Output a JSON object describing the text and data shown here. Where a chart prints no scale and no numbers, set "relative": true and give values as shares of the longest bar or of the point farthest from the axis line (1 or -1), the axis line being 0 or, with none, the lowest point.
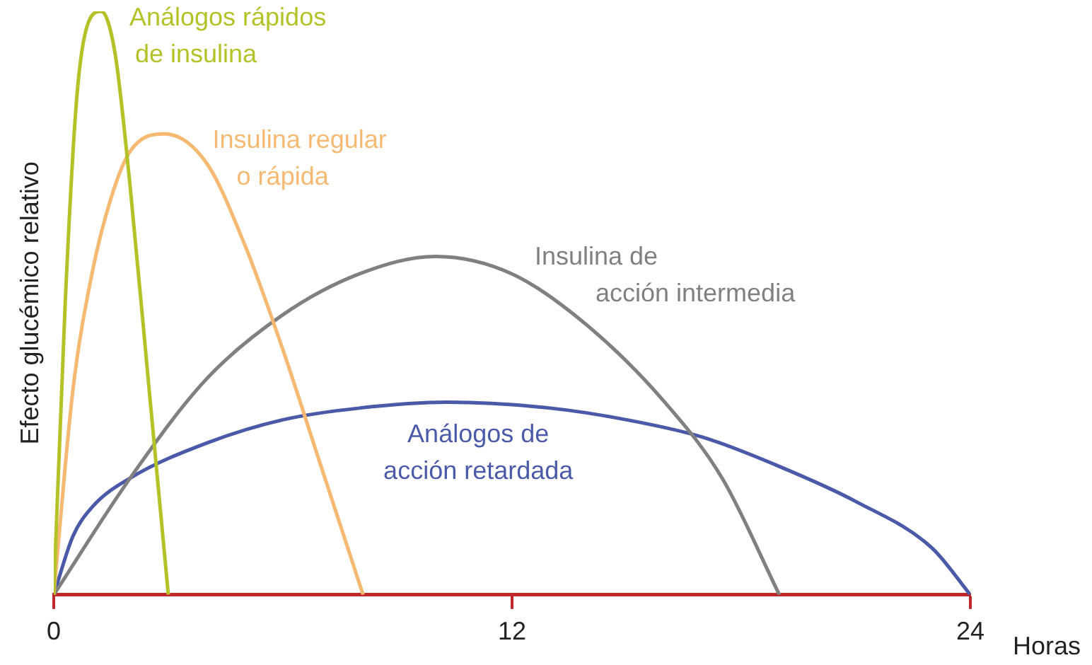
{
  "chart_data": {
    "type": "line",
    "relative": true,
    "ylabel": "Efecto glucémico relativo",
    "xlabel": "Horas",
    "xlim": [
      0,
      24
    ],
    "xticks": [
      0,
      12,
      24
    ],
    "grid": false,
    "legend": false,
    "marker": "none",
    "line_style": "solid",
    "series": [
      {
        "name": "Análogos rápidos de insulina",
        "color": "#b5c227",
        "x": [
          0,
          0.3,
          0.6,
          0.9,
          1.24,
          1.6,
          2.0,
          2.5,
          3.0
        ],
        "values": [
          0,
          0.5,
          0.85,
          0.98,
          1,
          0.93,
          0.7,
          0.35,
          0
        ]
      },
      {
        "name": "Insulina regular o rápida",
        "color": "#f5b971",
        "x": [
          0,
          0.5,
          1,
          1.5,
          2,
          2.9,
          4,
          5,
          6,
          7,
          8.1
        ],
        "values": [
          0,
          0.35,
          0.55,
          0.68,
          0.76,
          0.79,
          0.74,
          0.6,
          0.42,
          0.22,
          0
        ]
      },
      {
        "name": "Insulina de acción intermedia",
        "color": "#808080",
        "x": [
          0,
          2,
          4,
          6,
          8,
          10,
          12,
          14,
          16,
          17.5,
          19
        ],
        "values": [
          0,
          0.2,
          0.37,
          0.48,
          0.55,
          0.58,
          0.55,
          0.46,
          0.33,
          0.2,
          0
        ]
      },
      {
        "name": "Análogos de acción retardada",
        "color": "#4a5aa8",
        "x": [
          0,
          0.5,
          1,
          2,
          4,
          6,
          8,
          10.3,
          13,
          15,
          17,
          19,
          21,
          23,
          24
        ],
        "values": [
          0,
          0.1,
          0.15,
          0.2,
          0.26,
          0.3,
          0.32,
          0.33,
          0.32,
          0.3,
          0.27,
          0.22,
          0.16,
          0.08,
          0
        ]
      }
    ]
  }
}
